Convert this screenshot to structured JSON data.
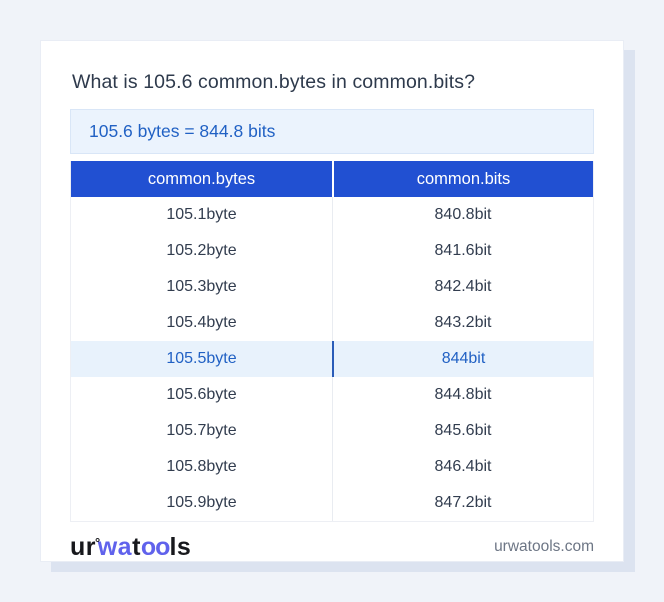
{
  "header": {
    "question": "What is 105.6 common.bytes in common.bits?",
    "result": "105.6 bytes = 844.8 bits"
  },
  "table": {
    "columns": [
      "common.bytes",
      "common.bits"
    ],
    "rows": [
      {
        "bytes": "105.1byte",
        "bits": "840.8bit",
        "highlighted": false
      },
      {
        "bytes": "105.2byte",
        "bits": "841.6bit",
        "highlighted": false
      },
      {
        "bytes": "105.3byte",
        "bits": "842.4bit",
        "highlighted": false
      },
      {
        "bytes": "105.4byte",
        "bits": "843.2bit",
        "highlighted": false
      },
      {
        "bytes": "105.5byte",
        "bits": "844bit",
        "highlighted": true
      },
      {
        "bytes": "105.6byte",
        "bits": "844.8bit",
        "highlighted": false
      },
      {
        "bytes": "105.7byte",
        "bits": "845.6bit",
        "highlighted": false
      },
      {
        "bytes": "105.8byte",
        "bits": "846.4bit",
        "highlighted": false
      },
      {
        "bytes": "105.9byte",
        "bits": "847.2bit",
        "highlighted": false
      }
    ]
  },
  "footer": {
    "logo": {
      "seg1": "ur",
      "ring": "°",
      "seg2": "wa",
      "seg3": "t",
      "seg4": "oo",
      "seg5": "ls"
    },
    "domain": "urwatools.com"
  },
  "colors": {
    "accent": "#2150d2",
    "accent_text": "#2161c4",
    "result_bg": "#ebf3fd",
    "result_border": "#d9e6f7",
    "highlight_bg": "#e8f2fc",
    "highlight_divider": "#2a5cb8",
    "page_bg": "#f0f3f9",
    "card_shadow": "#dce3f0",
    "logo_blue": "#6062ec",
    "text_dark": "#323d4f",
    "domain_gray": "#6d7685"
  }
}
